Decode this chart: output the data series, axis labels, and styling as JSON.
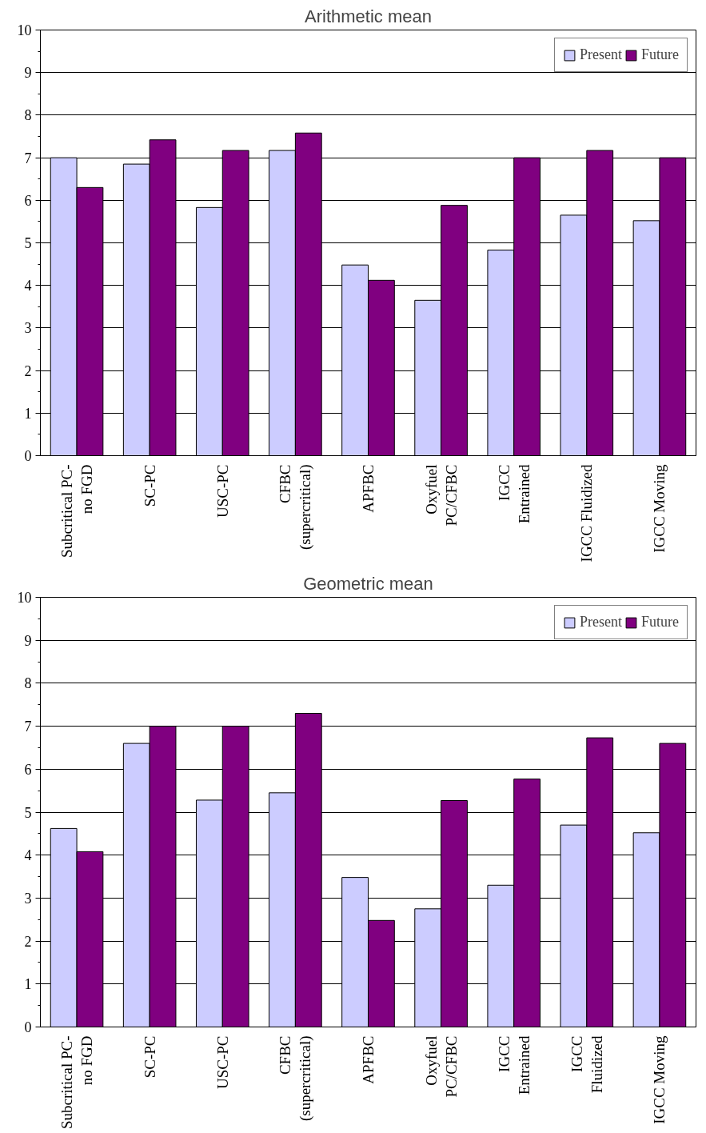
{
  "chart_data": [
    {
      "type": "bar",
      "title": "Arithmetic mean",
      "categories": [
        "Subcritical PC-\nno FGD",
        "SC-PC",
        "USC-PC",
        "CFBC\n(supercritical)",
        "APFBC",
        "Oxyfuel\nPC/CFBC",
        "IGCC\nEntrained",
        "IGCC Fluidized",
        "IGCC Moving"
      ],
      "series": [
        {
          "name": "Present",
          "color": "#ccccff",
          "values": [
            7.0,
            6.85,
            5.83,
            7.17,
            4.48,
            3.65,
            4.83,
            5.65,
            5.52
          ]
        },
        {
          "name": "Future",
          "color": "#800080",
          "values": [
            6.3,
            7.42,
            7.17,
            7.58,
            4.12,
            5.88,
            7.0,
            7.17,
            7.0
          ]
        }
      ],
      "ylim": [
        0,
        10
      ],
      "yticks": [
        0,
        1,
        2,
        3,
        4,
        5,
        6,
        7,
        8,
        9,
        10
      ],
      "grid": "y",
      "legend": "top right"
    },
    {
      "type": "bar",
      "title": "Geometric mean",
      "categories": [
        "Subcritical PC-\nno FGD",
        "SC-PC",
        "USC-PC",
        "CFBC\n(supercritical)",
        "APFBC",
        "Oxyfuel\nPC/CFBC",
        "IGCC\nEntrained",
        "IGCC\nFluidized",
        "IGCC Moving"
      ],
      "series": [
        {
          "name": "Present",
          "color": "#ccccff",
          "values": [
            4.62,
            6.6,
            5.28,
            5.45,
            3.48,
            2.75,
            3.3,
            4.7,
            4.52
          ]
        },
        {
          "name": "Future",
          "color": "#800080",
          "values": [
            4.08,
            7.0,
            7.0,
            7.3,
            2.48,
            5.27,
            5.77,
            6.73,
            6.6
          ]
        }
      ],
      "ylim": [
        0,
        10
      ],
      "yticks": [
        0,
        1,
        2,
        3,
        4,
        5,
        6,
        7,
        8,
        9,
        10
      ],
      "grid": "y",
      "legend": "top right"
    }
  ]
}
